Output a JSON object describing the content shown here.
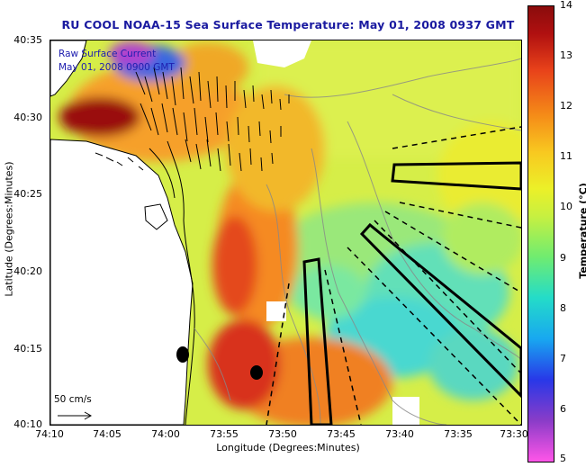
{
  "title": "RU COOL  NOAA-15  Sea Surface Temperature:  May 01, 2008 0937 GMT",
  "legend": {
    "line1": "Raw Surface Current",
    "line2": "May 01, 2008 0900 GMT"
  },
  "axes": {
    "xlabel": "Longitude (Degrees:Minutes)",
    "ylabel": "Latitude (Degrees:Minutes)",
    "xticks": [
      "74:10",
      "74:05",
      "74:00",
      "73:55",
      "73:50",
      "73:45",
      "73:40",
      "73:35",
      "73:30"
    ],
    "yticks": [
      "40:35",
      "40:30",
      "40:25",
      "40:20",
      "40:15",
      "40:10"
    ]
  },
  "colorbar": {
    "label": "Temperature (°C)",
    "min": 5,
    "max": 14,
    "ticks": [
      "14",
      "13",
      "12",
      "11",
      "10",
      "9",
      "8",
      "7",
      "6",
      "5"
    ]
  },
  "scale": {
    "label": "50 cm/s"
  }
}
